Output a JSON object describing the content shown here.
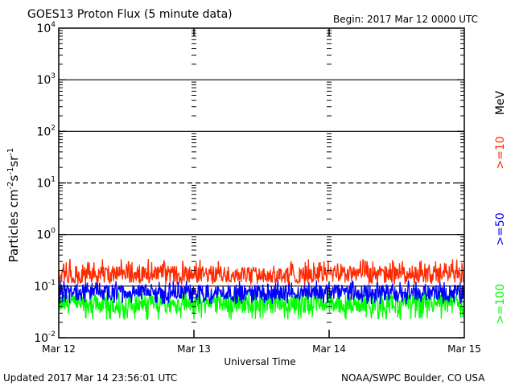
{
  "header": {
    "title": "GOES13 Proton Flux (5 minute data)",
    "begin": "Begin: 2017 Mar 12 0000 UTC"
  },
  "footer": {
    "updated": "Updated 2017 Mar 14 23:56:01 UTC",
    "credit": "NOAA/SWPC Boulder, CO USA"
  },
  "right_labels": {
    "unit": "MeV",
    "ge10": ">=10",
    "ge50": ">=50",
    "ge100": ">=100"
  },
  "chart_data": {
    "type": "line",
    "title": "GOES13 Proton Flux (5 minute data)",
    "xlabel": "Universal Time",
    "ylabel": "Particles cm-2s-1sr-1",
    "yscale": "log",
    "ylim": [
      0.01,
      10000
    ],
    "y_ticks": [
      {
        "base": "10",
        "exp": "4"
      },
      {
        "base": "10",
        "exp": "3"
      },
      {
        "base": "10",
        "exp": "2"
      },
      {
        "base": "10",
        "exp": "1"
      },
      {
        "base": "10",
        "exp": "0"
      },
      {
        "base": "10",
        "exp": "-1"
      },
      {
        "base": "10",
        "exp": "-2"
      }
    ],
    "x_ticks": [
      "Mar 12",
      "Mar 13",
      "Mar 14",
      "Mar 15"
    ],
    "x_range_days": [
      "2017-03-12",
      "2017-03-15"
    ],
    "reference_lines": [
      {
        "value": 10,
        "style": "dashed"
      }
    ],
    "series": [
      {
        "name": ">=10",
        "unit": "MeV",
        "color": "#ff2a00",
        "typical_min": 0.12,
        "typical_max": 0.28,
        "mean": 0.17
      },
      {
        "name": ">=50",
        "unit": "MeV",
        "color": "#0000ff",
        "typical_min": 0.05,
        "typical_max": 0.11,
        "mean": 0.075
      },
      {
        "name": ">=100",
        "unit": "MeV",
        "color": "#00ff00",
        "typical_min": 0.025,
        "typical_max": 0.065,
        "mean": 0.045
      }
    ]
  }
}
